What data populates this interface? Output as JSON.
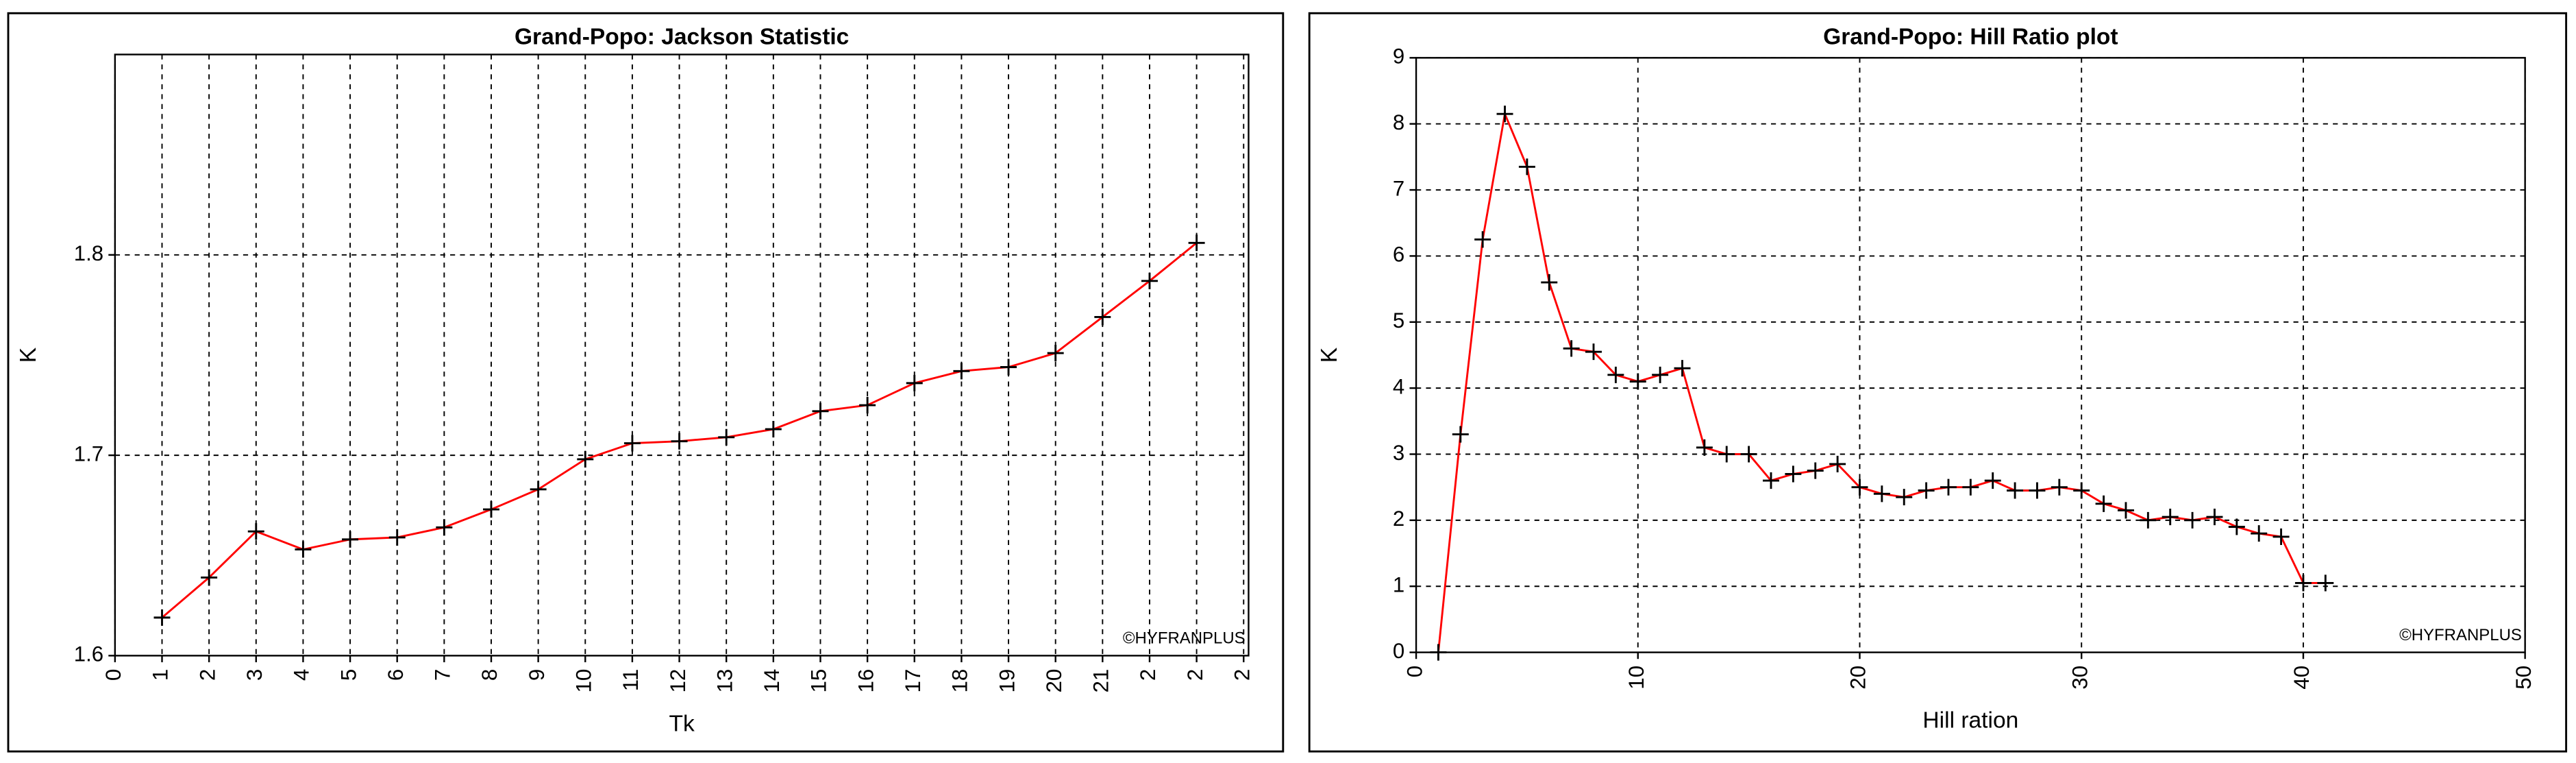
{
  "chart_data": [
    {
      "type": "line",
      "title": "Grand-Popo: Jackson Statistic",
      "x_label": "Tk",
      "y_label": "K",
      "annotation": "©HYFRANPLUS",
      "x": [
        1,
        2,
        3,
        4,
        5,
        6,
        7,
        8,
        9,
        10,
        11,
        12,
        13,
        14,
        15,
        16,
        17,
        18,
        19,
        20,
        21,
        22,
        23
      ],
      "values": [
        1.619,
        1.639,
        1.662,
        1.653,
        1.658,
        1.659,
        1.664,
        1.673,
        1.683,
        1.698,
        1.706,
        1.707,
        1.709,
        1.713,
        1.722,
        1.725,
        1.736,
        1.742,
        1.744,
        1.751,
        1.769,
        1.787,
        1.806
      ],
      "color": "#ff0000",
      "marker_color": "#000000",
      "xlim": [
        0,
        24
      ],
      "xticks": [
        0,
        1,
        2,
        3,
        4,
        5,
        6,
        7,
        8,
        9,
        10,
        11,
        12,
        13,
        14,
        15,
        16,
        17,
        18,
        19,
        20,
        21,
        {
          "value": 22,
          "label": "2"
        },
        {
          "value": 23,
          "label": "2"
        },
        {
          "value": 24,
          "label": "2"
        }
      ],
      "ylim": [
        1.6,
        1.9
      ],
      "yticks": [
        1.6,
        1.7,
        1.8
      ],
      "grid": true
    },
    {
      "type": "line",
      "title": "Grand-Popo: Hill Ratio plot",
      "x_label": "Hill ration",
      "y_label": "K",
      "annotation": "©HYFRANPLUS",
      "x": [
        1,
        2,
        3,
        4,
        5,
        6,
        7,
        8,
        9,
        10,
        11,
        12,
        13,
        14,
        15,
        16,
        17,
        18,
        19,
        20,
        21,
        22,
        23,
        24,
        25,
        26,
        27,
        28,
        29,
        30,
        31,
        32,
        33,
        34,
        35,
        36,
        37,
        38,
        39,
        40,
        41
      ],
      "values": [
        0,
        3.3,
        6.25,
        8.15,
        7.35,
        5.6,
        4.6,
        4.55,
        4.2,
        4.1,
        4.2,
        4.3,
        3.1,
        3.0,
        3.0,
        2.6,
        2.7,
        2.75,
        2.85,
        2.5,
        2.4,
        2.35,
        2.45,
        2.5,
        2.5,
        2.6,
        2.45,
        2.45,
        2.5,
        2.45,
        2.25,
        2.15,
        2.0,
        2.05,
        2.0,
        2.05,
        1.9,
        1.8,
        1.75,
        1.05,
        1.05
      ],
      "color": "#ff0000",
      "marker_color": "#000000",
      "xlim": [
        0,
        50
      ],
      "xticks": [
        0,
        10,
        20,
        30,
        40,
        50
      ],
      "ylim": [
        0,
        9
      ],
      "yticks": [
        0,
        1,
        2,
        3,
        4,
        5,
        6,
        7,
        8,
        9
      ],
      "grid": true
    }
  ]
}
